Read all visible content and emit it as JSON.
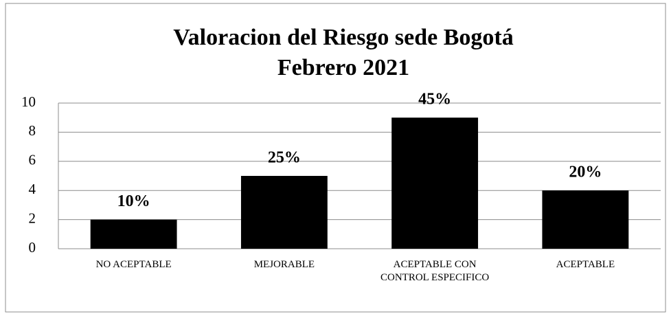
{
  "chart_data": {
    "type": "bar",
    "title": "Valoracion del Riesgo sede Bogotá",
    "subtitle": "Febrero 2021",
    "categories": [
      "NO ACEPTABLE",
      "MEJORABLE",
      "ACEPTABLE CON CONTROL ESPECIFICO",
      "ACEPTABLE"
    ],
    "values": [
      2,
      5,
      9,
      4
    ],
    "value_labels": [
      "10%",
      "25%",
      "45%",
      "20%"
    ],
    "color": "#000000",
    "ylim": [
      0,
      10
    ],
    "yticks": [
      0,
      2,
      4,
      6,
      8,
      10
    ],
    "grid": true
  }
}
